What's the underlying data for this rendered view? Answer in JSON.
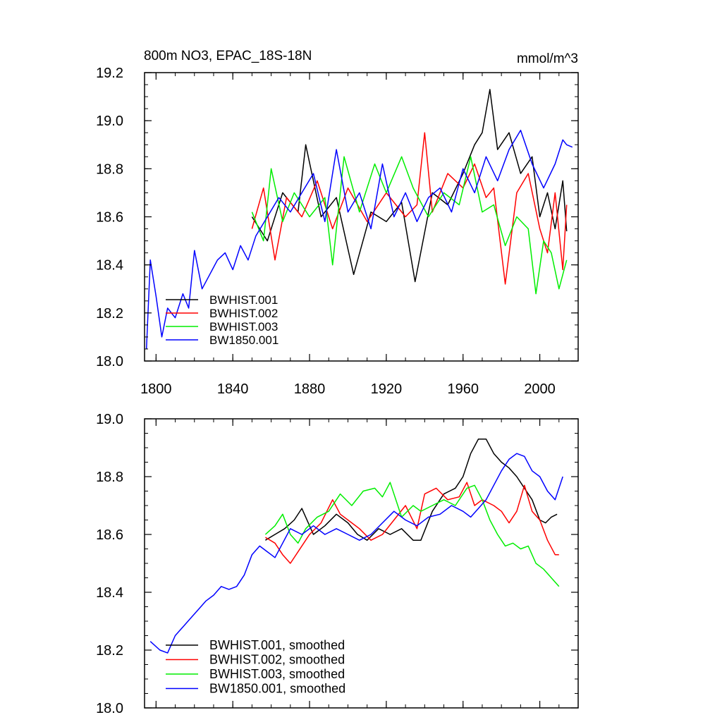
{
  "title_left": "800m NO3, EPAC_18S-18N",
  "title_right": "mmol/m^3",
  "chart_data": [
    {
      "type": "line",
      "panel": "top",
      "xlim": [
        1794,
        2020
      ],
      "ylim": [
        18.0,
        19.2
      ],
      "xticks": [
        1800,
        1840,
        1880,
        1920,
        1960,
        2000
      ],
      "xtick_labels": [
        "1800",
        "1840",
        "1880",
        "1920",
        "1960",
        "2000"
      ],
      "yticks": [
        18.0,
        18.2,
        18.4,
        18.6,
        18.8,
        19.0,
        19.2
      ],
      "ytick_labels": [
        "18.0",
        "18.2",
        "18.4",
        "18.6",
        "18.8",
        "19.0",
        "19.2"
      ],
      "legend_position": "bottom-left",
      "series": [
        {
          "name": "BWHIST.001",
          "color": "#000000",
          "x": [
            1850,
            1858,
            1866,
            1874,
            1878,
            1886,
            1894,
            1903,
            1912,
            1920,
            1928,
            1935,
            1944,
            1952,
            1960,
            1966,
            1970,
            1974,
            1978,
            1984,
            1990,
            1996,
            2000,
            2004,
            2008,
            2012,
            2014
          ],
          "y": [
            18.6,
            18.5,
            18.7,
            18.62,
            18.9,
            18.6,
            18.68,
            18.36,
            18.62,
            18.58,
            18.66,
            18.33,
            18.7,
            18.65,
            18.78,
            18.9,
            18.95,
            19.13,
            18.88,
            18.95,
            18.78,
            18.85,
            18.6,
            18.7,
            18.55,
            18.75,
            18.54
          ]
        },
        {
          "name": "BWHIST.002",
          "color": "#ff0000",
          "x": [
            1850,
            1856,
            1862,
            1868,
            1876,
            1884,
            1892,
            1900,
            1910,
            1920,
            1930,
            1936,
            1940,
            1944,
            1952,
            1960,
            1966,
            1972,
            1976,
            1982,
            1988,
            1994,
            2000,
            2004,
            2008,
            2012,
            2014
          ],
          "y": [
            18.55,
            18.72,
            18.42,
            18.68,
            18.6,
            18.75,
            18.55,
            18.72,
            18.58,
            18.7,
            18.6,
            18.65,
            18.95,
            18.62,
            18.78,
            18.72,
            18.82,
            18.68,
            18.72,
            18.32,
            18.7,
            18.78,
            18.55,
            18.45,
            18.7,
            18.38,
            18.65
          ]
        },
        {
          "name": "BWHIST.003",
          "color": "#00ee00",
          "x": [
            1850,
            1856,
            1860,
            1866,
            1872,
            1880,
            1888,
            1892,
            1898,
            1906,
            1914,
            1920,
            1928,
            1934,
            1942,
            1950,
            1958,
            1964,
            1970,
            1976,
            1982,
            1988,
            1994,
            1998,
            2002,
            2006,
            2010,
            2014
          ],
          "y": [
            18.62,
            18.5,
            18.8,
            18.58,
            18.7,
            18.6,
            18.68,
            18.4,
            18.85,
            18.62,
            18.82,
            18.7,
            18.85,
            18.72,
            18.6,
            18.7,
            18.65,
            18.85,
            18.62,
            18.65,
            18.48,
            18.6,
            18.55,
            18.28,
            18.5,
            18.45,
            18.3,
            18.42
          ]
        },
        {
          "name": "BW1850.001",
          "color": "#0000ff",
          "x": [
            1795,
            1797,
            1800,
            1803,
            1806,
            1810,
            1814,
            1817,
            1820,
            1824,
            1828,
            1832,
            1836,
            1840,
            1844,
            1848,
            1852,
            1858,
            1864,
            1870,
            1876,
            1882,
            1888,
            1894,
            1900,
            1906,
            1912,
            1918,
            1924,
            1930,
            1936,
            1942,
            1948,
            1954,
            1960,
            1966,
            1972,
            1978,
            1984,
            1990,
            1996,
            2002,
            2008,
            2012,
            2014,
            2017
          ],
          "y": [
            18.05,
            18.42,
            18.27,
            18.1,
            18.22,
            18.18,
            18.28,
            18.22,
            18.46,
            18.3,
            18.36,
            18.42,
            18.45,
            18.38,
            18.48,
            18.42,
            18.52,
            18.6,
            18.68,
            18.62,
            18.7,
            18.78,
            18.58,
            18.88,
            18.62,
            18.7,
            18.55,
            18.82,
            18.6,
            18.7,
            18.58,
            18.68,
            18.72,
            18.62,
            18.8,
            18.7,
            18.85,
            18.75,
            18.88,
            18.96,
            18.82,
            18.72,
            18.82,
            18.92,
            18.9,
            18.89
          ]
        }
      ]
    },
    {
      "type": "line",
      "panel": "bottom",
      "xlim": [
        1794,
        2020
      ],
      "ylim": [
        18.0,
        19.0
      ],
      "xticks": [
        1800,
        1840,
        1880,
        1920,
        1960,
        2000
      ],
      "yticks": [
        18.0,
        18.2,
        18.4,
        18.6,
        18.8,
        19.0
      ],
      "ytick_labels": [
        "18.0",
        "18.2",
        "18.4",
        "18.6",
        "18.8",
        "19.0"
      ],
      "legend_position": "bottom-left",
      "series": [
        {
          "name": "BWHIST.001, smoothed",
          "color": "#000000",
          "x": [
            1857,
            1862,
            1867,
            1872,
            1876,
            1882,
            1888,
            1894,
            1900,
            1905,
            1910,
            1916,
            1922,
            1928,
            1934,
            1938,
            1944,
            1950,
            1956,
            1960,
            1964,
            1968,
            1972,
            1976,
            1980,
            1984,
            1988,
            1992,
            1996,
            2000,
            2003,
            2006,
            2009
          ],
          "y": [
            18.58,
            18.6,
            18.62,
            18.65,
            18.69,
            18.6,
            18.63,
            18.67,
            18.64,
            18.6,
            18.58,
            18.62,
            18.6,
            18.62,
            18.58,
            18.58,
            18.68,
            18.74,
            18.76,
            18.8,
            18.88,
            18.93,
            18.93,
            18.88,
            18.85,
            18.83,
            18.8,
            18.76,
            18.72,
            18.65,
            18.64,
            18.66,
            18.67
          ]
        },
        {
          "name": "BWHIST.002, smoothed",
          "color": "#ff0000",
          "x": [
            1857,
            1862,
            1866,
            1870,
            1874,
            1880,
            1886,
            1892,
            1896,
            1900,
            1906,
            1912,
            1918,
            1924,
            1930,
            1936,
            1940,
            1946,
            1952,
            1958,
            1962,
            1966,
            1970,
            1976,
            1980,
            1984,
            1988,
            1992,
            1996,
            2000,
            2004,
            2008,
            2010
          ],
          "y": [
            18.59,
            18.57,
            18.53,
            18.5,
            18.54,
            18.6,
            18.64,
            18.72,
            18.67,
            18.65,
            18.62,
            18.58,
            18.6,
            18.65,
            18.7,
            18.62,
            18.74,
            18.76,
            18.72,
            18.73,
            18.78,
            18.7,
            18.72,
            18.7,
            18.68,
            18.64,
            18.68,
            18.77,
            18.68,
            18.65,
            18.58,
            18.53,
            18.53
          ]
        },
        {
          "name": "BWHIST.003, smoothed",
          "color": "#00ee00",
          "x": [
            1857,
            1862,
            1866,
            1870,
            1874,
            1878,
            1884,
            1890,
            1896,
            1902,
            1908,
            1914,
            1918,
            1922,
            1928,
            1934,
            1938,
            1944,
            1950,
            1956,
            1962,
            1966,
            1970,
            1974,
            1978,
            1982,
            1986,
            1990,
            1994,
            1998,
            2002,
            2006,
            2010
          ],
          "y": [
            18.6,
            18.63,
            18.67,
            18.6,
            18.57,
            18.62,
            18.66,
            18.68,
            18.74,
            18.7,
            18.75,
            18.76,
            18.73,
            18.78,
            18.66,
            18.7,
            18.68,
            18.7,
            18.72,
            18.7,
            18.76,
            18.77,
            18.72,
            18.65,
            18.6,
            18.56,
            18.57,
            18.55,
            18.56,
            18.5,
            18.48,
            18.45,
            18.42
          ]
        },
        {
          "name": "BW1850.001, smoothed",
          "color": "#0000ff",
          "x": [
            1797,
            1802,
            1806,
            1810,
            1814,
            1818,
            1822,
            1826,
            1830,
            1834,
            1838,
            1842,
            1846,
            1850,
            1854,
            1858,
            1862,
            1866,
            1870,
            1876,
            1882,
            1888,
            1894,
            1900,
            1906,
            1912,
            1918,
            1924,
            1930,
            1936,
            1942,
            1948,
            1954,
            1960,
            1964,
            1968,
            1972,
            1976,
            1980,
            1984,
            1988,
            1992,
            1996,
            2000,
            2004,
            2008,
            2012
          ],
          "y": [
            18.23,
            18.2,
            18.19,
            18.25,
            18.28,
            18.31,
            18.34,
            18.37,
            18.39,
            18.42,
            18.41,
            18.42,
            18.46,
            18.53,
            18.56,
            18.54,
            18.52,
            18.57,
            18.62,
            18.6,
            18.63,
            18.6,
            18.62,
            18.6,
            18.58,
            18.6,
            18.64,
            18.68,
            18.65,
            18.63,
            18.66,
            18.67,
            18.7,
            18.68,
            18.66,
            18.69,
            18.72,
            18.77,
            18.82,
            18.86,
            18.88,
            18.87,
            18.82,
            18.8,
            18.75,
            18.72,
            18.8
          ]
        }
      ]
    }
  ]
}
